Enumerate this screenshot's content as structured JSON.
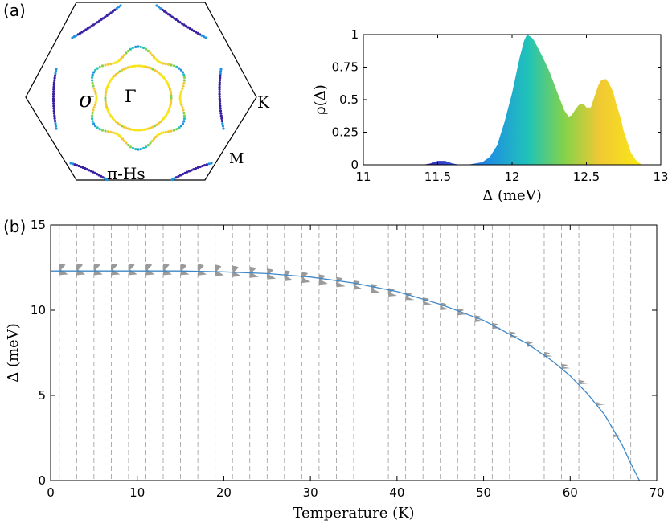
{
  "panel_labels": {
    "a": "(a)",
    "b": "(b)"
  },
  "bz_labels": {
    "sigma": "σ",
    "gamma": "Γ",
    "k": "K",
    "m": "M",
    "pi_hs": "π-Hs"
  },
  "colors": {
    "gap_colormap": [
      "#3a1fa3",
      "#2f55e0",
      "#1f93df",
      "#20c3b8",
      "#84d24a",
      "#f2c933",
      "#f7e51a"
    ],
    "fit_line": "#3f87c6",
    "violin": "#9a9a9a",
    "grid": "#9a9a9a"
  },
  "chart_data": [
    {
      "type": "area",
      "id": "gap-distribution",
      "title": "",
      "xlabel": "Δ (meV)",
      "ylabel": "ρ(Δ)",
      "xlim": [
        11,
        13
      ],
      "ylim": [
        0,
        1
      ],
      "x_ticks": [
        11,
        11.5,
        12,
        12.5,
        13
      ],
      "y_ticks": [
        0,
        0.25,
        0.5,
        0.75,
        1
      ],
      "x_tick_labels": [
        "11",
        "11.5",
        "12",
        "12.5",
        "13"
      ],
      "y_tick_labels": [
        "0",
        "0.25",
        "0.5",
        "0.75",
        "1"
      ],
      "grid": false,
      "fill": "colormap by Δ",
      "x": [
        11.4,
        11.45,
        11.5,
        11.55,
        11.6,
        11.65,
        11.7,
        11.75,
        11.8,
        11.85,
        11.9,
        11.95,
        12.0,
        12.05,
        12.08,
        12.1,
        12.13,
        12.15,
        12.2,
        12.25,
        12.3,
        12.35,
        12.38,
        12.4,
        12.43,
        12.45,
        12.48,
        12.5,
        12.53,
        12.55,
        12.58,
        12.6,
        12.63,
        12.65,
        12.68,
        12.7,
        12.73,
        12.75,
        12.78,
        12.8,
        12.83,
        12.86,
        12.88
      ],
      "y": [
        0.0,
        0.01,
        0.03,
        0.03,
        0.01,
        0.0,
        0.0,
        0.01,
        0.02,
        0.06,
        0.15,
        0.33,
        0.55,
        0.82,
        0.95,
        1.0,
        0.98,
        0.95,
        0.84,
        0.72,
        0.57,
        0.42,
        0.37,
        0.38,
        0.43,
        0.46,
        0.47,
        0.44,
        0.44,
        0.51,
        0.61,
        0.65,
        0.66,
        0.63,
        0.56,
        0.47,
        0.36,
        0.26,
        0.16,
        0.09,
        0.04,
        0.01,
        0.0
      ]
    },
    {
      "type": "scatter",
      "id": "gap-vs-temperature",
      "title": "",
      "xlabel": "Temperature (K)",
      "ylabel": "Δ (meV)",
      "xlim": [
        0,
        70
      ],
      "ylim": [
        0,
        15
      ],
      "x_ticks": [
        0,
        10,
        20,
        30,
        40,
        50,
        60,
        70
      ],
      "y_ticks": [
        0,
        5,
        10,
        15
      ],
      "x_tick_labels": [
        "0",
        "10",
        "20",
        "30",
        "40",
        "50",
        "60",
        "70"
      ],
      "y_tick_labels": [
        "0",
        "5",
        "10",
        "15"
      ],
      "grid": "vertical dashed lines at each sampled temperature",
      "temperatures": [
        1,
        3,
        5,
        7,
        9,
        11,
        13,
        15,
        17,
        19,
        21,
        23,
        25,
        27,
        29,
        31,
        33,
        35,
        37,
        39,
        41,
        43,
        45,
        47,
        49,
        51,
        53,
        55,
        57,
        59,
        61,
        63,
        65,
        67
      ],
      "distributions": [
        {
          "T": 1,
          "low": 12.05,
          "high": 12.75,
          "peaks": [
            12.1,
            12.65
          ]
        },
        {
          "T": 3,
          "low": 12.05,
          "high": 12.75,
          "peaks": [
            12.1,
            12.65
          ]
        },
        {
          "T": 5,
          "low": 12.05,
          "high": 12.75,
          "peaks": [
            12.1,
            12.65
          ]
        },
        {
          "T": 7,
          "low": 12.05,
          "high": 12.75,
          "peaks": [
            12.1,
            12.65
          ]
        },
        {
          "T": 9,
          "low": 12.05,
          "high": 12.75,
          "peaks": [
            12.1,
            12.65
          ]
        },
        {
          "T": 11,
          "low": 12.05,
          "high": 12.75,
          "peaks": [
            12.1,
            12.65
          ]
        },
        {
          "T": 13,
          "low": 12.05,
          "high": 12.75,
          "peaks": [
            12.1,
            12.65
          ]
        },
        {
          "T": 15,
          "low": 12.05,
          "high": 12.72,
          "peaks": [
            12.1,
            12.6
          ]
        },
        {
          "T": 17,
          "low": 12.03,
          "high": 12.72,
          "peaks": [
            12.1,
            12.6
          ]
        },
        {
          "T": 19,
          "low": 12.0,
          "high": 12.68,
          "peaks": [
            12.05,
            12.55
          ]
        },
        {
          "T": 21,
          "low": 11.95,
          "high": 12.62,
          "peaks": [
            12.0,
            12.5
          ]
        },
        {
          "T": 23,
          "low": 11.9,
          "high": 12.55,
          "peaks": [
            11.95,
            12.45
          ]
        },
        {
          "T": 25,
          "low": 11.8,
          "high": 12.45,
          "peaks": [
            11.85,
            12.35
          ]
        },
        {
          "T": 27,
          "low": 11.7,
          "high": 12.35,
          "peaks": [
            11.75,
            12.25
          ]
        },
        {
          "T": 29,
          "low": 11.6,
          "high": 12.25,
          "peaks": [
            11.65,
            12.15
          ]
        },
        {
          "T": 31,
          "low": 11.5,
          "high": 12.1,
          "peaks": [
            11.55,
            12.0
          ]
        },
        {
          "T": 33,
          "low": 11.35,
          "high": 11.95,
          "peaks": [
            11.4,
            11.85
          ]
        },
        {
          "T": 35,
          "low": 11.2,
          "high": 11.75,
          "peaks": [
            11.25,
            11.65
          ]
        },
        {
          "T": 37,
          "low": 11.0,
          "high": 11.55,
          "peaks": [
            11.05,
            11.45
          ]
        },
        {
          "T": 39,
          "low": 10.8,
          "high": 11.3,
          "peaks": [
            10.85,
            11.2
          ]
        },
        {
          "T": 41,
          "low": 10.6,
          "high": 11.05,
          "peaks": [
            10.6,
            10.95
          ]
        },
        {
          "T": 43,
          "low": 10.3,
          "high": 10.75,
          "peaks": [
            10.35,
            10.65
          ]
        },
        {
          "T": 45,
          "low": 10.0,
          "high": 10.45,
          "peaks": [
            10.05,
            10.35
          ]
        },
        {
          "T": 47,
          "low": 9.7,
          "high": 10.1,
          "peaks": [
            9.75,
            10.0
          ]
        },
        {
          "T": 49,
          "low": 9.3,
          "high": 9.7,
          "peaks": [
            9.35,
            9.6
          ]
        },
        {
          "T": 51,
          "low": 8.9,
          "high": 9.25,
          "peaks": [
            8.95,
            9.15
          ]
        },
        {
          "T": 53,
          "low": 8.4,
          "high": 8.75,
          "peaks": [
            8.45,
            8.65
          ]
        },
        {
          "T": 55,
          "low": 7.85,
          "high": 8.2,
          "peaks": [
            7.9,
            8.1
          ]
        },
        {
          "T": 57,
          "low": 7.25,
          "high": 7.55,
          "peaks": [
            7.3,
            7.45
          ]
        },
        {
          "T": 59,
          "low": 6.55,
          "high": 6.85,
          "peaks": [
            6.6,
            6.75
          ]
        },
        {
          "T": 61,
          "low": 5.65,
          "high": 5.9,
          "peaks": [
            5.7,
            5.8
          ]
        },
        {
          "T": 63,
          "low": 4.4,
          "high": 4.6,
          "peaks": [
            4.45,
            4.55
          ]
        },
        {
          "T": 65,
          "low": 2.55,
          "high": 2.7,
          "peaks": [
            2.6,
            2.65
          ]
        }
      ],
      "fit_line": {
        "x": [
          0,
          5,
          10,
          15,
          20,
          25,
          30,
          35,
          40,
          45,
          50,
          55,
          58,
          60,
          62,
          64,
          66,
          67,
          68
        ],
        "y": [
          12.3,
          12.3,
          12.3,
          12.3,
          12.25,
          12.15,
          11.95,
          11.6,
          11.1,
          10.35,
          9.4,
          8.05,
          7.0,
          6.15,
          5.1,
          3.85,
          2.1,
          1.0,
          0.0
        ]
      }
    }
  ]
}
